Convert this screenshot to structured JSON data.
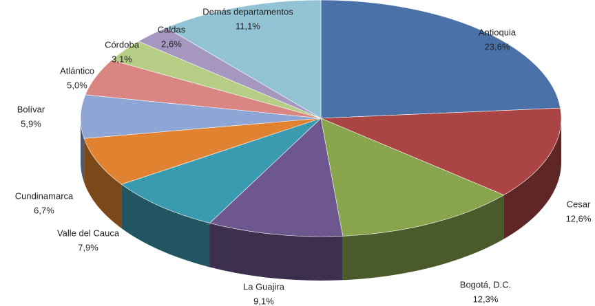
{
  "chart_data": {
    "type": "pie",
    "categories": [
      "Antioquia",
      "Cesar",
      "Bogotá, D.C.",
      "La Guajira",
      "Valle del Cauca",
      "Cundinamarca",
      "Bolívar",
      "Atlántico",
      "Córdoba",
      "Caldas",
      "Demás departamentos"
    ],
    "values": [
      23.6,
      12.6,
      12.3,
      9.1,
      7.9,
      6.7,
      5.9,
      5.0,
      3.1,
      2.6,
      11.1
    ],
    "value_labels": [
      "23,6%",
      "12,6%",
      "12,3%",
      "9,1%",
      "7,9%",
      "6,7%",
      "5,9%",
      "5,0%",
      "3,1%",
      "2,6%",
      "11,1%"
    ],
    "colors": [
      "#4a72a8",
      "#aa4543",
      "#88a44c",
      "#6e578f",
      "#3a9bb0",
      "#e0822f",
      "#8ea6d6",
      "#d98683",
      "#b5cd84",
      "#a597c0",
      "#92c3d5"
    ]
  }
}
